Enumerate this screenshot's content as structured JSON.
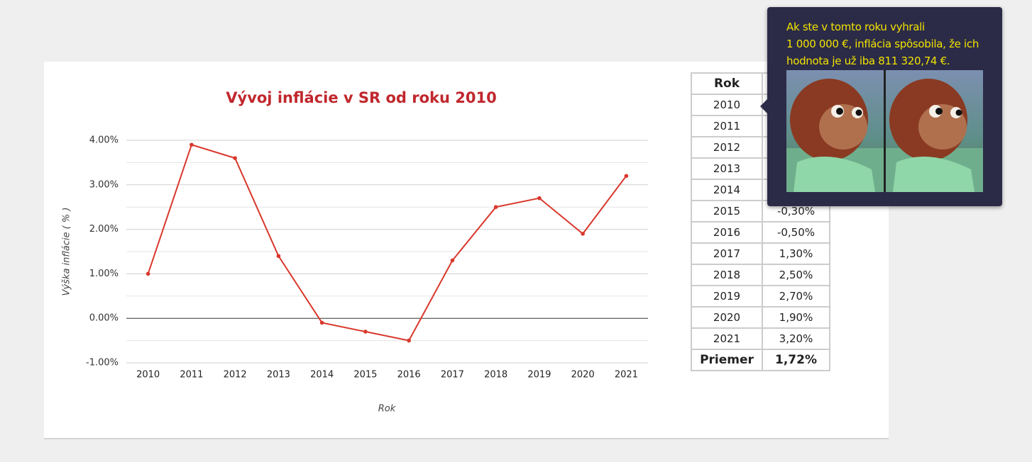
{
  "chart_data": {
    "type": "line",
    "title": "Vývoj inflácie v SR od roku 2010",
    "x_label": "Rok",
    "y_label": "Výška inflácie ( % )",
    "categories": [
      "2010",
      "2011",
      "2012",
      "2013",
      "2014",
      "2015",
      "2016",
      "2017",
      "2018",
      "2019",
      "2020",
      "2021"
    ],
    "values": [
      1.0,
      3.9,
      3.6,
      1.4,
      -0.1,
      -0.3,
      -0.5,
      1.3,
      2.5,
      2.7,
      1.9,
      3.2
    ],
    "color": "#d9382c",
    "ylim": [
      -1,
      4
    ],
    "yticks": [
      {
        "value": -1,
        "label": "-1.00%"
      },
      {
        "value": 0,
        "label": "0.00%"
      },
      {
        "value": 1,
        "label": "1.00%"
      },
      {
        "value": 2,
        "label": "2.00%"
      },
      {
        "value": 3,
        "label": "3.00%"
      },
      {
        "value": 4,
        "label": "4.00%"
      }
    ],
    "minor_yticks": [
      -0.5,
      0.5,
      1.5,
      2.5,
      3.5
    ],
    "grid": true
  },
  "table": {
    "header": [
      "Rok"
    ],
    "rows": [
      [
        "2010"
      ],
      [
        "2011"
      ],
      [
        "2012"
      ],
      [
        "2013"
      ],
      [
        "2014"
      ],
      [
        "2015",
        "-0,30%"
      ],
      [
        "2016",
        "-0,50%"
      ],
      [
        "2017",
        "1,30%"
      ],
      [
        "2018",
        "2,50%"
      ],
      [
        "2019",
        "2,70%"
      ],
      [
        "2020",
        "1,90%"
      ],
      [
        "2021",
        "3,20%"
      ]
    ],
    "footer": [
      "Priemer",
      "1,72%"
    ]
  },
  "tooltip": {
    "lines": [
      "Ak ste v tomto roku vyhrali",
      "1 000 000 €, inflácia spôsobila, že ich",
      "hodnota je už iba 811 320,74 €."
    ]
  }
}
